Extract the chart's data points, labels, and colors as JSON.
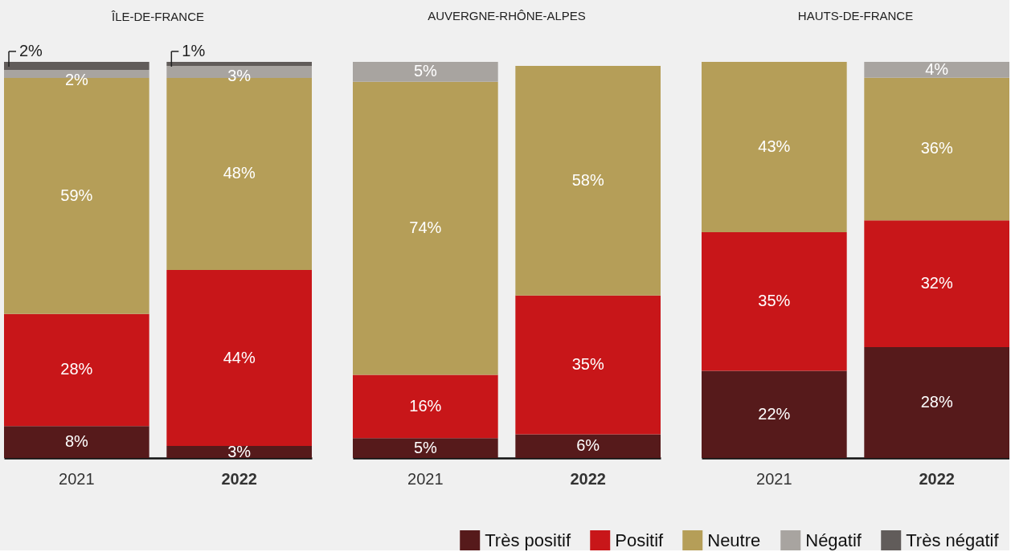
{
  "chart_data": [
    {
      "type": "bar",
      "title": "ÎLE-DE-FRANCE",
      "stacked": true,
      "categories": [
        "2021",
        "2022"
      ],
      "tick_labels": "x",
      "legend": "bottom right",
      "series": [
        {
          "name": "Très positif",
          "color": "#561a1b",
          "values": [
            8,
            3
          ],
          "value_labels": [
            "8%",
            "3%"
          ]
        },
        {
          "name": "Positif",
          "color": "#c81619",
          "values": [
            28,
            44
          ],
          "value_labels": [
            "28%",
            "44%"
          ]
        },
        {
          "name": "Neutre",
          "color": "#b59e58",
          "values": [
            59,
            48
          ],
          "value_labels": [
            "59%",
            "48%"
          ]
        },
        {
          "name": "Négatif",
          "color": "#a8a4a0",
          "values": [
            2,
            3
          ],
          "value_labels": [
            "2%",
            "3%"
          ]
        },
        {
          "name": "Très négatif",
          "color": "#615c5a",
          "values": [
            2,
            1
          ],
          "value_labels": [
            "2%",
            "1%"
          ]
        }
      ]
    },
    {
      "type": "bar",
      "title": "AUVERGNE-RHÔNE-ALPES",
      "stacked": true,
      "categories": [
        "2021",
        "2022"
      ],
      "tick_labels": "x",
      "legend": "bottom right",
      "series": [
        {
          "name": "Très positif",
          "color": "#561a1b",
          "values": [
            5,
            6
          ],
          "value_labels": [
            "5%",
            "6%"
          ]
        },
        {
          "name": "Positif",
          "color": "#c81619",
          "values": [
            16,
            35
          ],
          "value_labels": [
            "16%",
            "35%"
          ]
        },
        {
          "name": "Neutre",
          "color": "#b59e58",
          "values": [
            74,
            58
          ],
          "value_labels": [
            "74%",
            "58%"
          ]
        },
        {
          "name": "Négatif",
          "color": "#a8a4a0",
          "values": [
            5,
            null
          ],
          "value_labels": [
            "5%",
            null
          ]
        },
        {
          "name": "Très négatif",
          "color": "#615c5a",
          "values": [
            null,
            null
          ],
          "value_labels": [
            null,
            null
          ]
        }
      ]
    },
    {
      "type": "bar",
      "title": "HAUTS-DE-FRANCE",
      "stacked": true,
      "categories": [
        "2021",
        "2022"
      ],
      "tick_labels": "x",
      "legend": "bottom right",
      "series": [
        {
          "name": "Très positif",
          "color": "#561a1b",
          "values": [
            22,
            28
          ],
          "value_labels": [
            "22%",
            "28%"
          ]
        },
        {
          "name": "Positif",
          "color": "#c81619",
          "values": [
            35,
            32
          ],
          "value_labels": [
            "35%",
            "32%"
          ]
        },
        {
          "name": "Neutre",
          "color": "#b59e58",
          "values": [
            43,
            36
          ],
          "value_labels": [
            "43%",
            "36%"
          ]
        },
        {
          "name": "Négatif",
          "color": "#a8a4a0",
          "values": [
            null,
            4
          ],
          "value_labels": [
            null,
            "4%"
          ]
        },
        {
          "name": "Très négatif",
          "color": "#615c5a",
          "values": [
            null,
            null
          ],
          "value_labels": [
            null,
            null
          ]
        }
      ]
    }
  ]
}
